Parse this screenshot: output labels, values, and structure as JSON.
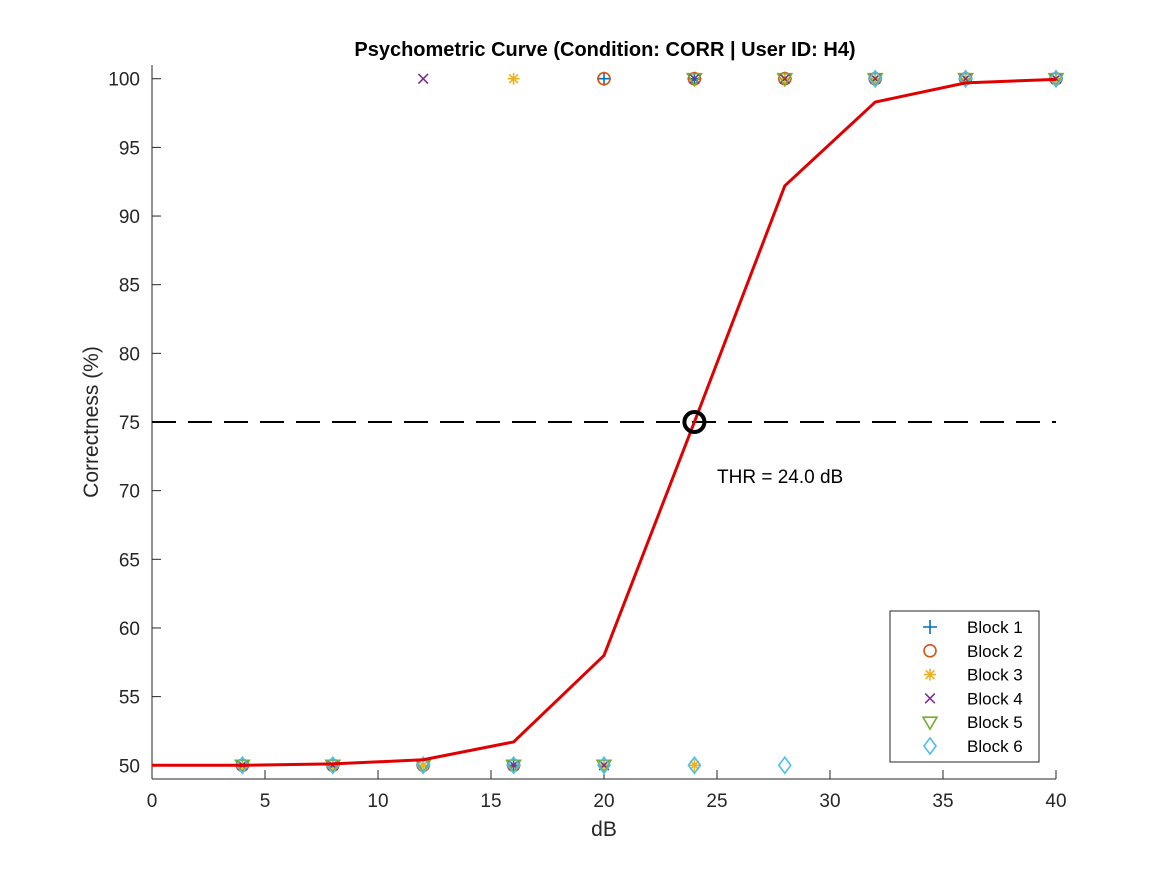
{
  "chart_data": {
    "type": "scatter",
    "title": "Psychometric Curve (Condition: CORR | User ID: H4)",
    "xlabel": "dB",
    "ylabel": "Correctness (%)",
    "xlim": [
      0,
      40
    ],
    "ylim": [
      49,
      101
    ],
    "xticks": [
      0,
      5,
      10,
      15,
      20,
      25,
      30,
      35,
      40
    ],
    "yticks": [
      50,
      55,
      60,
      65,
      70,
      75,
      80,
      85,
      90,
      95,
      100
    ],
    "grid": false,
    "legend_position": "bottom-right",
    "series": [
      {
        "name": "Block 1",
        "marker": "plus",
        "color": "#0072BD",
        "points": [
          [
            4,
            50
          ],
          [
            8,
            50
          ],
          [
            12,
            50
          ],
          [
            16,
            50
          ],
          [
            20,
            100
          ],
          [
            24,
            100
          ],
          [
            28,
            100
          ],
          [
            32,
            100
          ],
          [
            36,
            100
          ],
          [
            40,
            100
          ]
        ]
      },
      {
        "name": "Block 2",
        "marker": "circle",
        "color": "#D95319",
        "points": [
          [
            4,
            50
          ],
          [
            8,
            50
          ],
          [
            12,
            50
          ],
          [
            16,
            50
          ],
          [
            20,
            100
          ],
          [
            24,
            100
          ],
          [
            28,
            100
          ],
          [
            32,
            100
          ],
          [
            36,
            100
          ],
          [
            40,
            100
          ]
        ]
      },
      {
        "name": "Block 3",
        "marker": "asterisk",
        "color": "#EDB120",
        "points": [
          [
            4,
            50
          ],
          [
            8,
            50
          ],
          [
            12,
            50
          ],
          [
            16,
            100
          ],
          [
            20,
            50
          ],
          [
            24,
            50
          ],
          [
            28,
            100
          ],
          [
            32,
            100
          ],
          [
            36,
            100
          ],
          [
            40,
            100
          ]
        ]
      },
      {
        "name": "Block 4",
        "marker": "x",
        "color": "#7E2F8E",
        "points": [
          [
            4,
            50
          ],
          [
            8,
            50
          ],
          [
            12,
            100
          ],
          [
            16,
            50
          ],
          [
            20,
            50
          ],
          [
            24,
            100
          ],
          [
            28,
            100
          ],
          [
            32,
            100
          ],
          [
            36,
            100
          ],
          [
            40,
            100
          ]
        ]
      },
      {
        "name": "Block 5",
        "marker": "triangle-down",
        "color": "#77AC30",
        "points": [
          [
            4,
            50
          ],
          [
            8,
            50
          ],
          [
            12,
            50
          ],
          [
            16,
            50
          ],
          [
            20,
            50
          ],
          [
            24,
            100
          ],
          [
            28,
            100
          ],
          [
            32,
            100
          ],
          [
            36,
            100
          ],
          [
            40,
            100
          ]
        ]
      },
      {
        "name": "Block 6",
        "marker": "diamond",
        "color": "#4DBEEE",
        "points": [
          [
            4,
            50
          ],
          [
            8,
            50
          ],
          [
            12,
            50
          ],
          [
            16,
            50
          ],
          [
            20,
            50
          ],
          [
            24,
            50
          ],
          [
            28,
            50
          ],
          [
            32,
            100
          ],
          [
            36,
            100
          ],
          [
            40,
            100
          ]
        ]
      }
    ],
    "fit_curve": {
      "color": "#E00000",
      "points": [
        [
          0,
          50
        ],
        [
          4,
          50
        ],
        [
          8,
          50.1
        ],
        [
          12,
          50.4
        ],
        [
          16,
          51.7
        ],
        [
          20,
          58
        ],
        [
          24,
          75
        ],
        [
          28,
          92.2
        ],
        [
          32,
          98.3
        ],
        [
          36,
          99.7
        ],
        [
          40,
          99.95
        ]
      ]
    },
    "threshold_line": {
      "y": 75,
      "style": "dashed",
      "color": "#000000"
    },
    "threshold_point": {
      "x": 24,
      "y": 75
    },
    "annotation": {
      "text": "THR = 24.0 dB",
      "x": 25,
      "y": 71
    }
  }
}
